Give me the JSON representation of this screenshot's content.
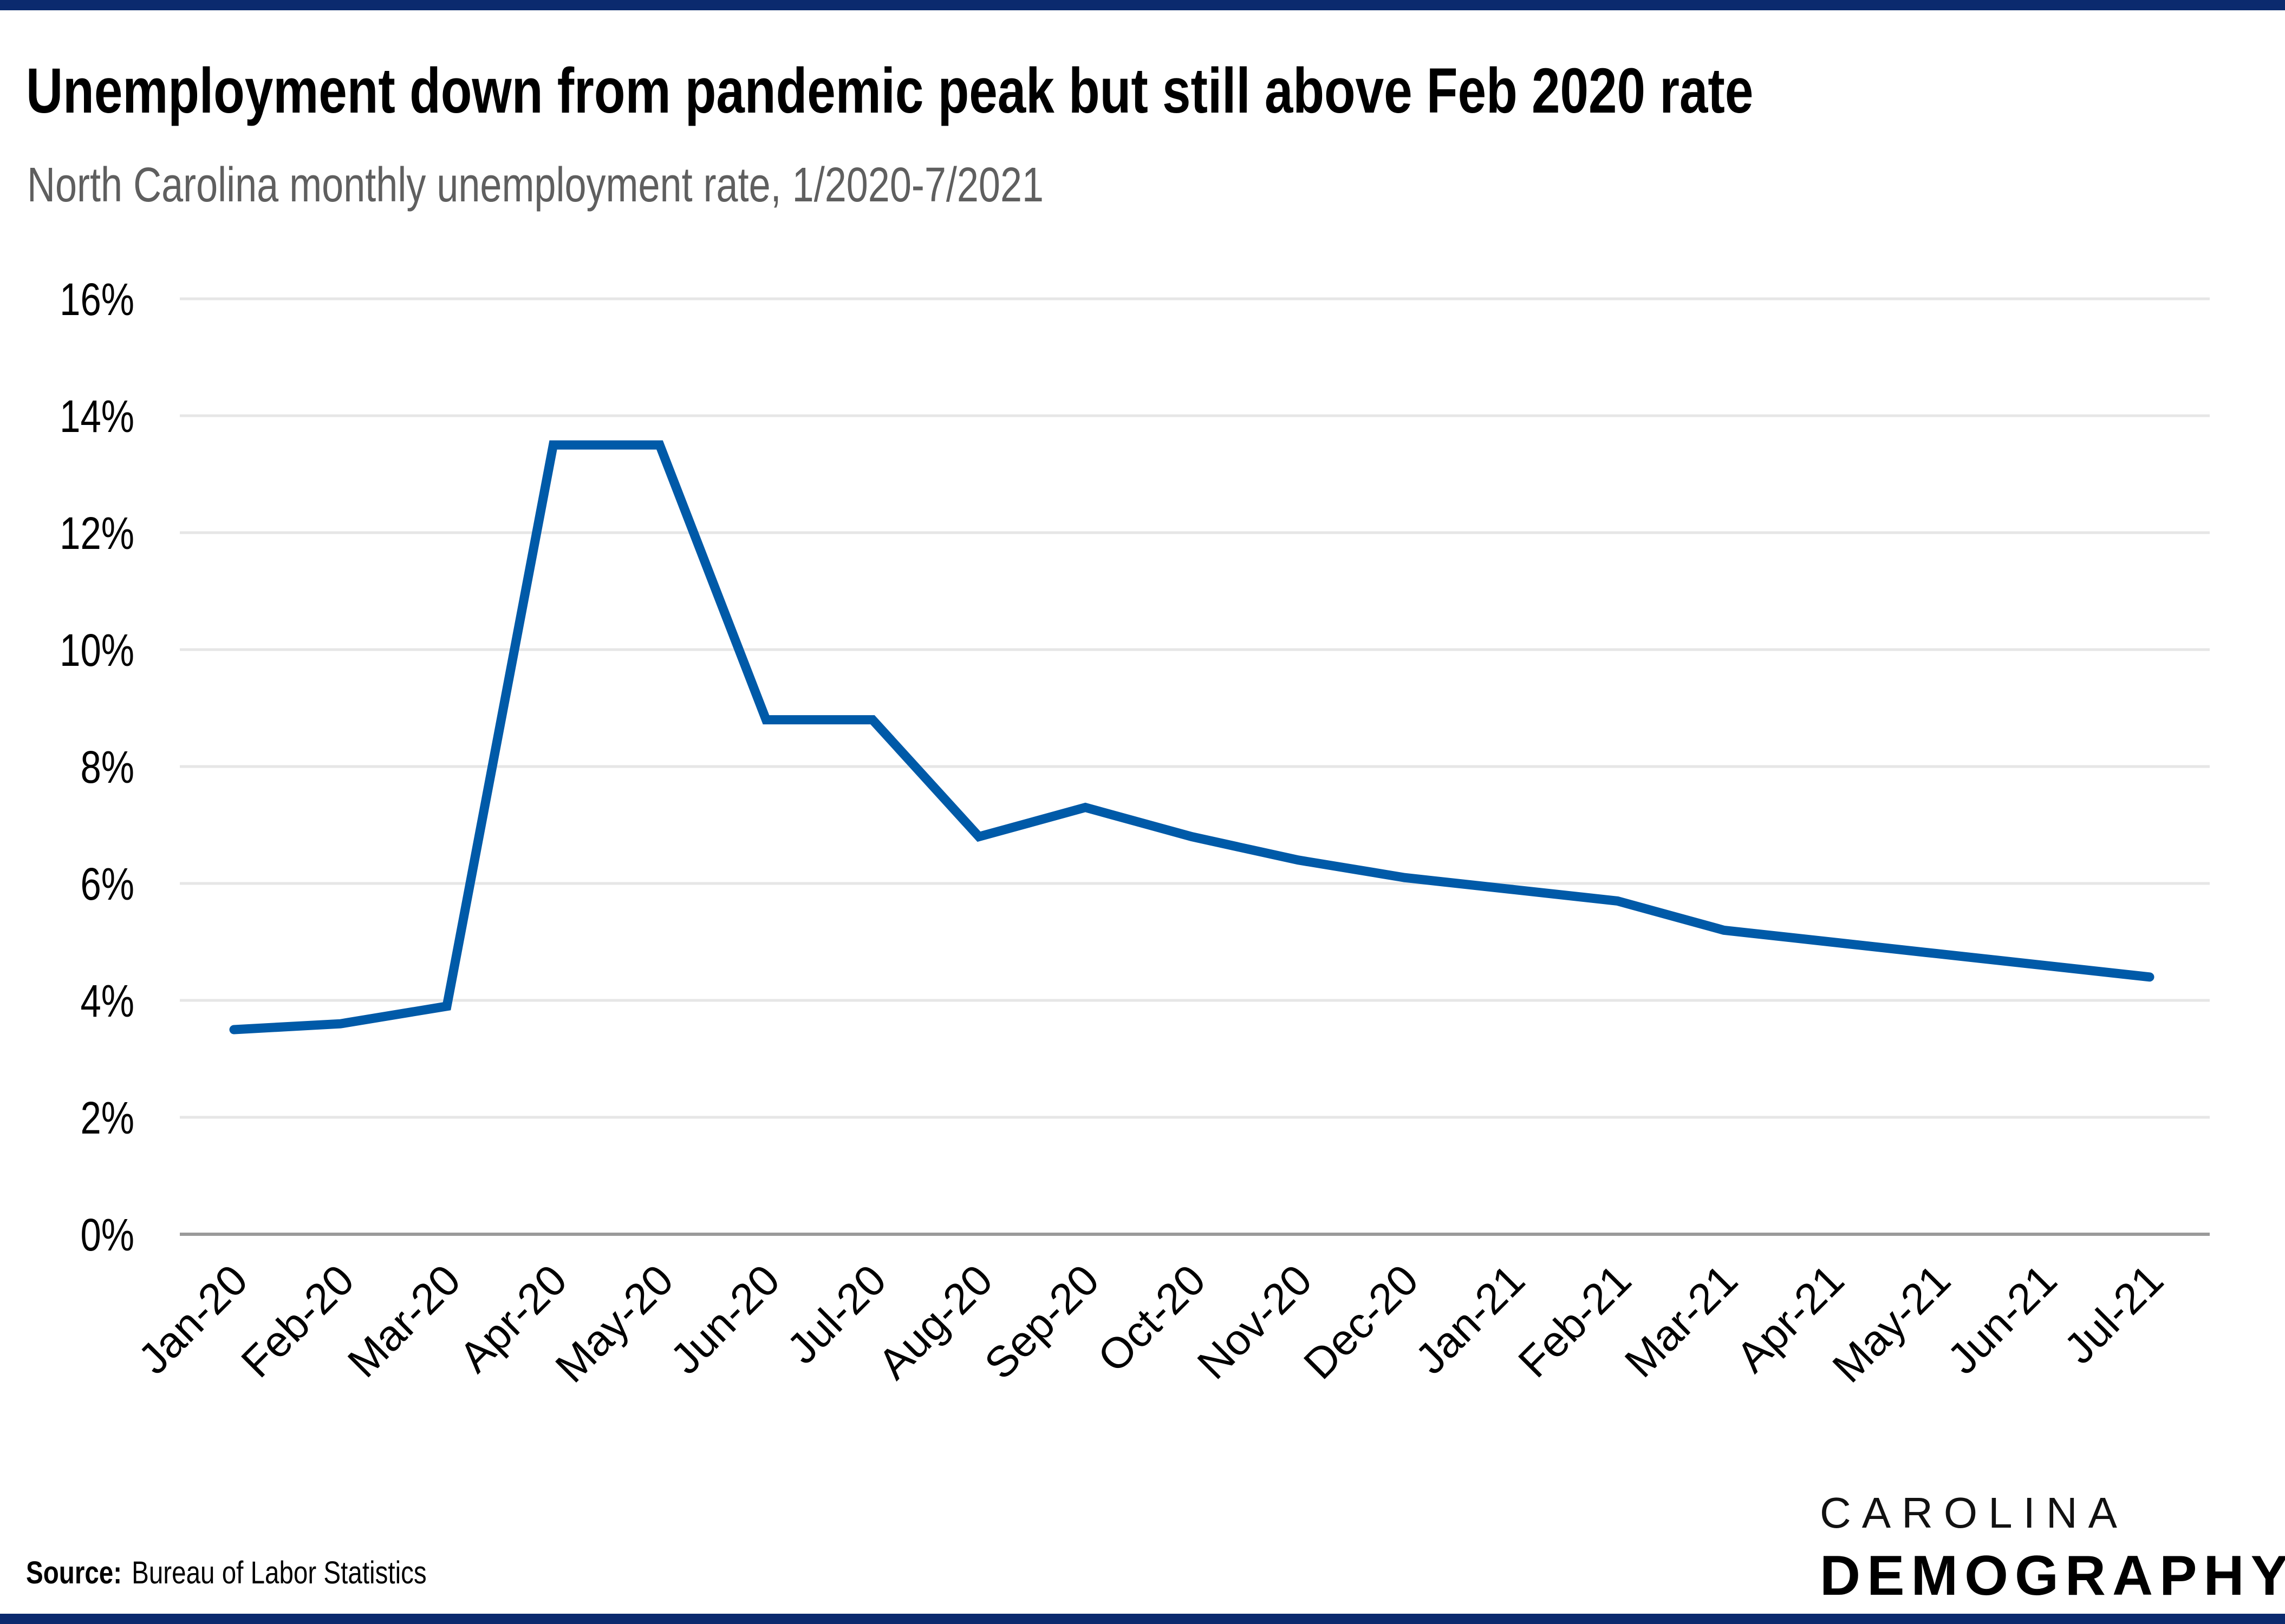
{
  "title": "Unemployment down from pandemic peak but still above Feb 2020 rate",
  "subtitle": "North Carolina monthly unemployment rate, 1/2020-7/2021",
  "source_label": "Source:",
  "source_text": "Bureau of Labor Statistics",
  "logo": {
    "top": "CAROLINA",
    "bottom": "DEMOGRAPHY"
  },
  "colors": {
    "accent_rule": "#0b2a6e",
    "line": "#005aa8",
    "grid": "#e6e6e6",
    "axis": "#9a9a9a",
    "text": "#000000"
  },
  "chart_data": {
    "type": "line",
    "title": "Unemployment down from pandemic peak but still above Feb 2020 rate",
    "subtitle": "North Carolina monthly unemployment rate, 1/2020-7/2021",
    "xlabel": "",
    "ylabel": "",
    "categories": [
      "Jan-20",
      "Feb-20",
      "Mar-20",
      "Apr-20",
      "May-20",
      "Jun-20",
      "Jul-20",
      "Aug-20",
      "Sep-20",
      "Oct-20",
      "Nov-20",
      "Dec-20",
      "Jan-21",
      "Feb-21",
      "Mar-21",
      "Apr-21",
      "May-21",
      "Jun-21",
      "Jul-21"
    ],
    "series": [
      {
        "values": [
          3.5,
          3.6,
          3.9,
          13.5,
          13.5,
          8.8,
          8.8,
          6.8,
          7.3,
          6.8,
          6.4,
          6.1,
          5.9,
          5.7,
          5.2,
          5.0,
          4.8,
          4.6,
          4.4
        ]
      }
    ],
    "yticks": [
      0,
      2,
      4,
      6,
      8,
      10,
      12,
      14,
      16
    ],
    "ytick_labels": [
      "0%",
      "2%",
      "4%",
      "6%",
      "8%",
      "10%",
      "12%",
      "14%",
      "16%"
    ],
    "ylim": [
      0,
      16
    ],
    "grid": true,
    "legend": "none"
  }
}
